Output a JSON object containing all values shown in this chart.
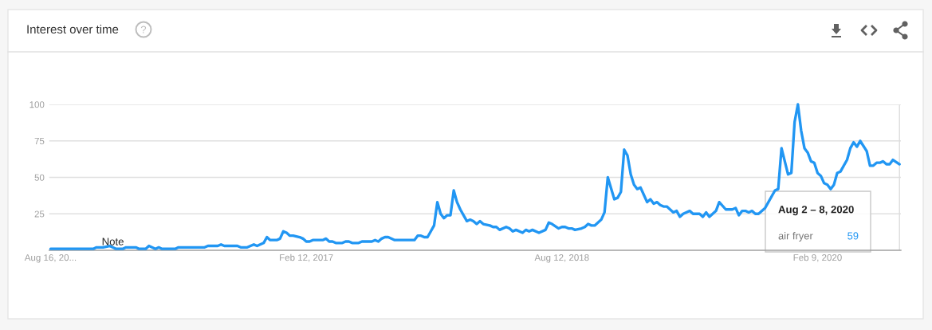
{
  "chart_data": {
    "type": "line",
    "title": "Interest over time",
    "x": [
      "2015-08-16",
      "2015-11-15",
      "2015-11-22",
      "2015-12-06",
      "2015-12-20",
      "2016-01-03",
      "2016-01-17",
      "2016-01-24",
      "2016-02-14",
      "2016-02-21",
      "2016-03-06",
      "2016-03-13",
      "2016-03-27",
      "2016-04-03",
      "2016-04-10",
      "2016-05-08",
      "2016-05-15",
      "2016-07-10",
      "2016-07-17",
      "2016-08-07",
      "2016-08-14",
      "2016-08-21",
      "2016-09-18",
      "2016-09-25",
      "2016-10-09",
      "2016-10-23",
      "2016-10-30",
      "2016-11-13",
      "2016-11-20",
      "2016-11-27",
      "2016-12-11",
      "2016-12-18",
      "2016-12-25",
      "2017-01-01",
      "2017-01-08",
      "2017-01-15",
      "2017-01-29",
      "2017-02-05",
      "2017-02-12",
      "2017-02-19",
      "2017-02-26",
      "2017-03-19",
      "2017-03-26",
      "2017-04-02",
      "2017-04-09",
      "2017-04-16",
      "2017-04-30",
      "2017-05-07",
      "2017-05-14",
      "2017-05-21",
      "2017-06-04",
      "2017-06-11",
      "2017-07-02",
      "2017-07-09",
      "2017-07-16",
      "2017-07-23",
      "2017-07-30",
      "2017-08-06",
      "2017-08-20",
      "2017-10-01",
      "2017-10-08",
      "2017-10-15",
      "2017-10-22",
      "2017-10-29",
      "2017-11-05",
      "2017-11-12",
      "2017-11-19",
      "2017-11-26",
      "2017-12-03",
      "2017-12-10",
      "2017-12-17",
      "2017-12-24",
      "2017-12-31",
      "2018-01-07",
      "2018-01-14",
      "2018-01-21",
      "2018-01-28",
      "2018-02-04",
      "2018-02-11",
      "2018-02-18",
      "2018-02-25",
      "2018-03-11",
      "2018-03-18",
      "2018-03-25",
      "2018-04-01",
      "2018-04-15",
      "2018-04-22",
      "2018-04-29",
      "2018-05-06",
      "2018-05-20",
      "2018-05-27",
      "2018-06-03",
      "2018-06-10",
      "2018-06-24",
      "2018-07-08",
      "2018-07-15",
      "2018-07-22",
      "2018-08-05",
      "2018-08-12",
      "2018-08-19",
      "2018-08-26",
      "2018-09-02",
      "2018-09-09",
      "2018-09-23",
      "2018-09-30",
      "2018-10-07",
      "2018-10-14",
      "2018-10-21",
      "2018-11-04",
      "2018-11-11",
      "2018-11-18",
      "2018-12-02",
      "2018-12-09",
      "2018-12-16",
      "2018-12-23",
      "2018-12-30",
      "2019-01-06",
      "2019-01-13",
      "2019-01-20",
      "2019-01-27",
      "2019-02-03",
      "2019-02-10",
      "2019-02-17",
      "2019-02-24",
      "2019-03-03",
      "2019-03-10",
      "2019-03-17",
      "2019-03-24",
      "2019-04-07",
      "2019-04-14",
      "2019-04-21",
      "2019-04-28",
      "2019-05-12",
      "2019-05-19",
      "2019-06-02",
      "2019-06-09",
      "2019-06-16",
      "2019-06-23",
      "2019-07-07",
      "2019-07-14",
      "2019-07-28",
      "2019-08-11",
      "2019-08-18",
      "2019-08-25",
      "2019-09-01",
      "2019-09-08",
      "2019-09-15",
      "2019-09-22",
      "2019-09-29",
      "2019-10-06",
      "2019-10-20",
      "2019-11-10",
      "2019-11-17",
      "2019-11-24",
      "2019-12-01",
      "2019-12-08",
      "2019-12-15",
      "2019-12-22",
      "2019-12-29",
      "2020-01-05",
      "2020-01-12",
      "2020-01-19",
      "2020-01-26",
      "2020-02-02",
      "2020-02-09",
      "2020-02-16",
      "2020-02-23",
      "2020-03-01",
      "2020-03-08",
      "2020-03-15",
      "2020-03-22",
      "2020-03-29",
      "2020-04-12",
      "2020-04-19",
      "2020-04-26",
      "2020-05-03",
      "2020-05-10",
      "2020-05-24",
      "2020-05-31",
      "2020-06-07",
      "2020-06-14",
      "2020-06-21",
      "2020-06-28",
      "2020-07-05",
      "2020-07-12",
      "2020-07-19",
      "2020-08-02"
    ],
    "series": [
      {
        "name": "air fryer",
        "color": "#2196f3",
        "values": [
          1,
          1,
          2,
          2,
          3,
          1,
          1,
          2,
          2,
          1,
          1,
          3,
          1,
          2,
          1,
          1,
          2,
          2,
          3,
          3,
          4,
          3,
          3,
          2,
          2,
          4,
          3,
          5,
          9,
          7,
          7,
          8,
          13,
          12,
          10,
          10,
          9,
          8,
          6,
          6,
          7,
          7,
          8,
          6,
          6,
          5,
          5,
          6,
          6,
          5,
          5,
          6,
          6,
          7,
          6,
          8,
          9,
          9,
          7,
          7,
          10,
          10,
          9,
          9,
          13,
          17,
          33,
          25,
          22,
          24,
          24,
          41,
          33,
          28,
          24,
          20,
          21,
          20,
          18,
          20,
          18,
          17,
          16,
          16,
          14,
          16,
          15,
          13,
          14,
          12,
          14,
          13,
          14,
          12,
          14,
          19,
          18,
          15,
          16,
          16,
          15,
          15,
          14,
          15,
          16,
          18,
          17,
          17,
          21,
          26,
          50,
          35,
          36,
          40,
          69,
          65,
          52,
          45,
          42,
          43,
          38,
          33,
          35,
          32,
          33,
          31,
          30,
          30,
          26,
          27,
          23,
          25,
          27,
          25,
          25,
          23,
          26,
          23,
          27,
          33,
          28,
          28,
          29,
          24,
          27,
          27,
          26,
          27,
          25,
          25,
          29,
          41,
          42,
          70,
          61,
          52,
          53,
          88,
          100,
          82,
          70,
          67,
          61,
          60,
          53,
          51,
          46,
          45,
          42,
          45,
          53,
          54,
          62,
          70,
          74,
          71,
          75,
          68,
          58,
          58,
          60,
          60,
          61,
          59,
          59,
          62,
          59
        ]
      }
    ],
    "xlim": [
      "2015-08-13",
      "2020-08-05"
    ],
    "xticks": [
      {
        "value": "2015-08-16",
        "label": "Aug 16, 20..."
      },
      {
        "value": "2017-02-12",
        "label": "Feb 12, 2017"
      },
      {
        "value": "2018-08-12",
        "label": "Aug 12, 2018"
      },
      {
        "value": "2020-02-09",
        "label": "Feb 9, 2020"
      }
    ],
    "ylim": [
      0,
      100
    ],
    "yticks": [
      25,
      50,
      75,
      100
    ],
    "grid": "y",
    "ref_lines": [
      {
        "axis": "x",
        "value": "2020-08-02",
        "color": "#dddddd"
      }
    ],
    "annotations": [
      {
        "text": "Note",
        "x": "2015-12-27",
        "y": 2
      },
      "Aug 2 – 8, 2020",
      "59"
    ]
  }
}
